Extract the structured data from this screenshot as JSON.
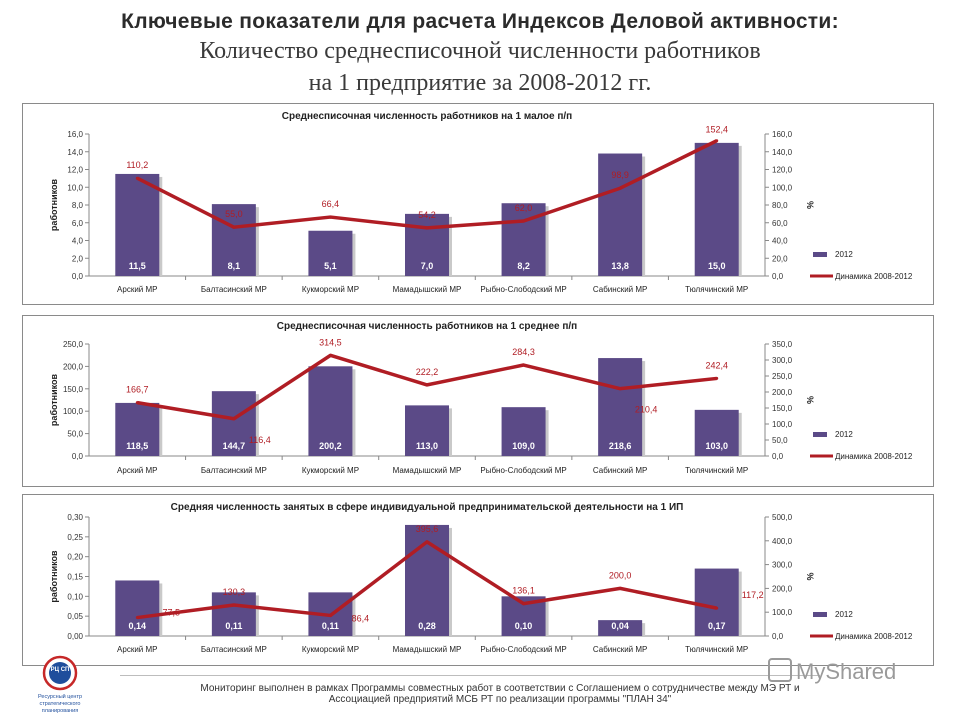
{
  "header": {
    "title": "Ключевые показатели для расчета Индексов Деловой активности:",
    "subtitle_line1": "Количество среднесписочной численности работников",
    "subtitle_line2": "на 1 предприятие за 2008-2012 гг."
  },
  "colors": {
    "bar": "#5b4a87",
    "line": "#b01d24",
    "bar_label": "#ffffff",
    "line_label": "#b01d24"
  },
  "chart_data": [
    {
      "type": "bar",
      "title": "Среднесписочная численность работников на 1 малое п/п",
      "categories": [
        "Арский МР",
        "Балтасинский МР",
        "Кукморский МР",
        "Мамадышский МР",
        "Рыбно-Слободский МР",
        "Сабинский МР",
        "Тюлячинский МР"
      ],
      "series": [
        {
          "name": "2012",
          "type": "bar",
          "axis": "left",
          "values": [
            11.5,
            8.1,
            5.1,
            7.0,
            8.2,
            13.8,
            15.0
          ],
          "labels": [
            "11,5",
            "8,1",
            "5,1",
            "7,0",
            "8,2",
            "13,8",
            "15,0"
          ]
        },
        {
          "name": "Динамика 2008-2012",
          "type": "line",
          "axis": "right",
          "values": [
            110.2,
            55.0,
            66.4,
            54.2,
            62.0,
            98.9,
            152.4
          ],
          "labels": [
            "110,2",
            "55,0",
            "66,4",
            "54,2",
            "62,0",
            "98,9",
            "152,4"
          ]
        }
      ],
      "ylabel": "работников",
      "y2label": "%",
      "ylim": [
        0,
        16
      ],
      "y2lim": [
        0,
        160
      ],
      "yticks": [
        "0,0",
        "2,0",
        "4,0",
        "6,0",
        "8,0",
        "10,0",
        "12,0",
        "14,0",
        "16,0"
      ],
      "y2ticks": [
        "0,0",
        "20,0",
        "40,0",
        "60,0",
        "80,0",
        "100,0",
        "120,0",
        "140,0",
        "160,0"
      ],
      "legend": "right",
      "grid": false
    },
    {
      "type": "bar",
      "title": "Среднесписочная численность работников на 1 среднее п/п",
      "categories": [
        "Арский МР",
        "Балтасинский МР",
        "Кукморский МР",
        "Мамадышский МР",
        "Рыбно-Слободский МР",
        "Сабинский МР",
        "Тюлячинский МР"
      ],
      "series": [
        {
          "name": "2012",
          "type": "bar",
          "axis": "left",
          "values": [
            118.5,
            144.7,
            200.2,
            113.0,
            109.0,
            218.6,
            103.0
          ],
          "labels": [
            "118,5",
            "144,7",
            "200,2",
            "113,0",
            "109,0",
            "218,6",
            "103,0"
          ]
        },
        {
          "name": "Динамика 2008-2012",
          "type": "line",
          "axis": "right",
          "values": [
            166.7,
            116.4,
            314.5,
            222.2,
            284.3,
            210.4,
            242.4
          ],
          "labels": [
            "166,7",
            "116,4",
            "314,5",
            "222,2",
            "284,3",
            "210,4",
            "242,4"
          ]
        }
      ],
      "ylabel": "работников",
      "y2label": "%",
      "ylim": [
        0,
        250
      ],
      "y2lim": [
        0,
        350
      ],
      "yticks": [
        "0,0",
        "50,0",
        "100,0",
        "150,0",
        "200,0",
        "250,0"
      ],
      "y2ticks": [
        "0,0",
        "50,0",
        "100,0",
        "150,0",
        "200,0",
        "250,0",
        "300,0",
        "350,0"
      ],
      "legend": "right",
      "grid": false
    },
    {
      "type": "bar",
      "title": "Средняя численность занятых в сфере индивидуальной предпринимательской деятельности на 1 ИП",
      "categories": [
        "Арский МР",
        "Балтасинский МР",
        "Кукморский МР",
        "Мамадышский МР",
        "Рыбно-Слободский МР",
        "Сабинский МР",
        "Тюлячинский МР"
      ],
      "series": [
        {
          "name": "2012",
          "type": "bar",
          "axis": "left",
          "values": [
            0.14,
            0.11,
            0.11,
            0.28,
            0.1,
            0.04,
            0.17
          ],
          "labels": [
            "0,14",
            "0,11",
            "0,11",
            "0,28",
            "0,10",
            "0,04",
            "0,17"
          ]
        },
        {
          "name": "Динамика 2008-2012",
          "type": "line",
          "axis": "right",
          "values": [
            77.5,
            130.3,
            86.4,
            395.6,
            136.1,
            200.0,
            117.2
          ],
          "labels": [
            "77,5",
            "130,3",
            "86,4",
            "395,6",
            "136,1",
            "200,0",
            "117,2"
          ]
        }
      ],
      "ylabel": "работников",
      "y2label": "%",
      "ylim": [
        0,
        0.3
      ],
      "y2lim": [
        0,
        500
      ],
      "yticks": [
        "0,00",
        "0,05",
        "0,10",
        "0,15",
        "0,20",
        "0,25",
        "0,30"
      ],
      "y2ticks": [
        "0,0",
        "100,0",
        "200,0",
        "300,0",
        "400,0",
        "500,0"
      ],
      "legend": "right",
      "grid": false
    }
  ],
  "footer": {
    "line1": "Мониторинг выполнен в рамках Программы совместных работ в соответствии с Соглашением о сотрудничестве между МЭ РТ и",
    "line2": "Ассоциацией предприятий МСБ РТ по реализации программы \"ПЛАН 34\""
  },
  "logo": {
    "mark": "РЦ СП",
    "caption_line1": "Ресурсный центр",
    "caption_line2": "стратегического",
    "caption_line3": "планирования"
  },
  "watermark": {
    "text": "MyShared"
  }
}
